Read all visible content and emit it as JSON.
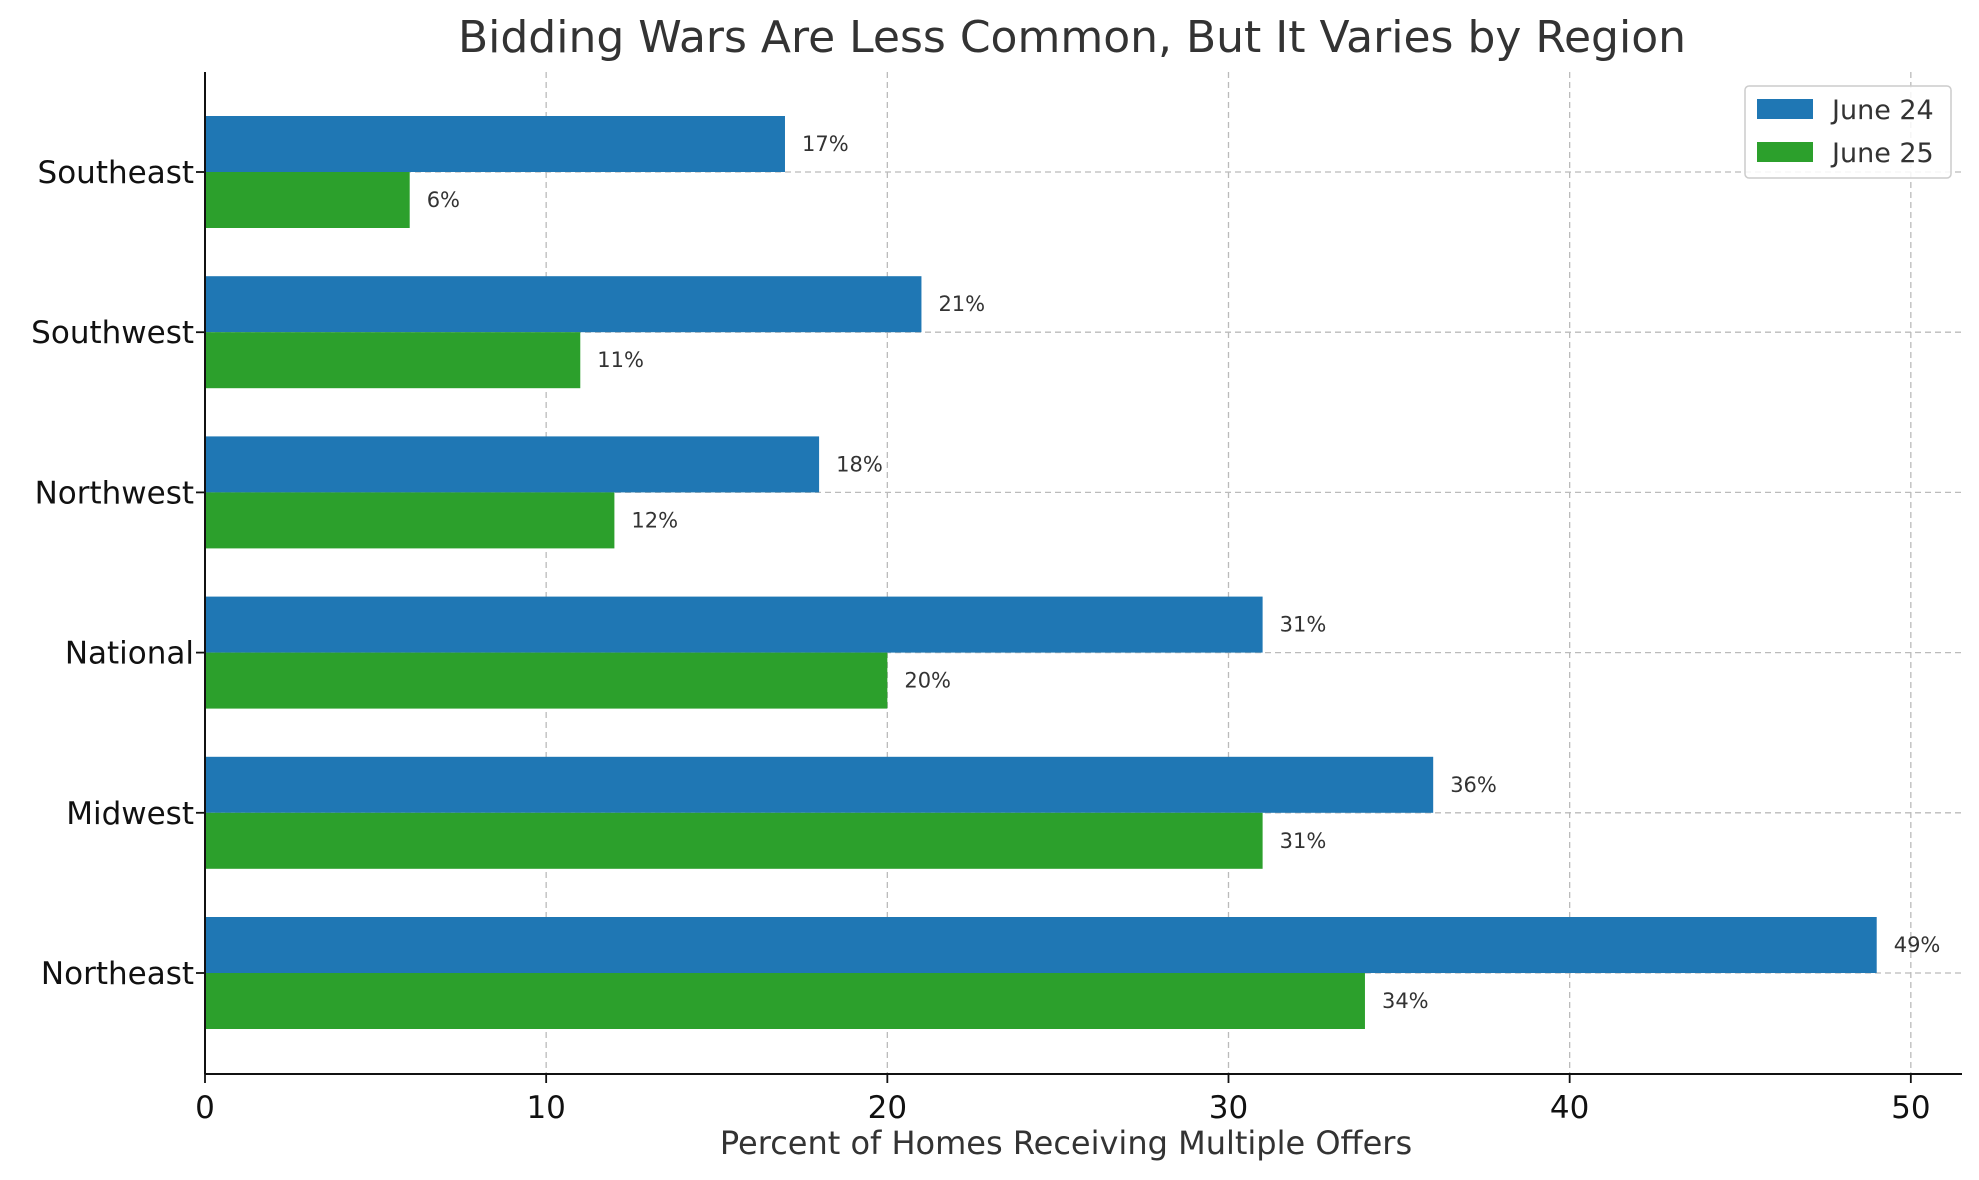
{
  "chart_data": {
    "type": "bar",
    "orientation": "horizontal",
    "title": "Bidding Wars Are Less Common, But It Varies by Region",
    "xlabel": "Percent of Homes Receiving Multiple Offers",
    "ylabel": "",
    "categories": [
      "Northeast",
      "Midwest",
      "National",
      "Northwest",
      "Southwest",
      "Southeast"
    ],
    "series": [
      {
        "name": "June 24",
        "color": "#1f77b4",
        "values": [
          49,
          36,
          31,
          18,
          21,
          17
        ],
        "labels": [
          "49%",
          "36%",
          "31%",
          "18%",
          "21%",
          "17%"
        ]
      },
      {
        "name": "June 25",
        "color": "#2ca02c",
        "values": [
          34,
          31,
          20,
          12,
          11,
          6
        ],
        "labels": [
          "34%",
          "31%",
          "20%",
          "12%",
          "11%",
          "6%"
        ]
      }
    ],
    "xlim": [
      0,
      51.5
    ],
    "xticks": [
      0,
      10,
      20,
      30,
      40,
      50
    ],
    "xtick_labels": [
      "0",
      "10",
      "20",
      "30",
      "40",
      "50"
    ],
    "grid": true,
    "legend_position": "top-right"
  }
}
